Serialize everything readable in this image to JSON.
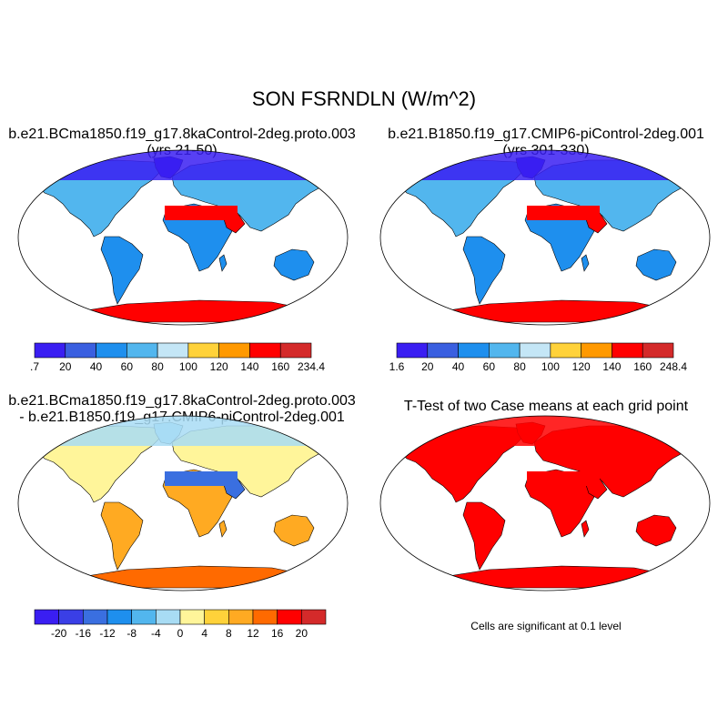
{
  "title": "SON FSRNDLN (W/m^2)",
  "panels": [
    {
      "title_line1": "b.e21.BCma1850.f19_g17.8kaControl-2deg.proto.003",
      "title_line2": "(yrs 21-50)",
      "colorbar": {
        "labels": [
          ".7",
          "20",
          "40",
          "60",
          "80",
          "100",
          "120",
          "140",
          "160",
          "234.4"
        ],
        "colors": [
          "#3a1ef2",
          "#3a5fe0",
          "#1e8fee",
          "#52b6ee",
          "#c4e6f6",
          "#ffd23a",
          "#ff9900",
          "#ff0000",
          "#d42a2a"
        ]
      },
      "map_fill": {
        "high_lat": "#3a1ef2",
        "mid": "#52b6ee",
        "tropics": "#1e8fee",
        "desert": "#ff0000",
        "antarctica": "#ff0000"
      }
    },
    {
      "title_line1": "b.e21.B1850.f19_g17.CMIP6-piControl-2deg.001",
      "title_line2": "(yrs 301-330)",
      "colorbar": {
        "labels": [
          "1.6",
          "20",
          "40",
          "60",
          "80",
          "100",
          "120",
          "140",
          "160",
          "248.4"
        ],
        "colors": [
          "#3a1ef2",
          "#3a5fe0",
          "#1e8fee",
          "#52b6ee",
          "#c4e6f6",
          "#ffd23a",
          "#ff9900",
          "#ff0000",
          "#d42a2a"
        ]
      },
      "map_fill": {
        "high_lat": "#3a1ef2",
        "mid": "#52b6ee",
        "tropics": "#1e8fee",
        "desert": "#ff0000",
        "antarctica": "#ff0000"
      }
    },
    {
      "title_line1": "b.e21.BCma1850.f19_g17.8kaControl-2deg.proto.003",
      "title_line2": "- b.e21.B1850.f19_g17.CMIP6-piControl-2deg.001",
      "colorbar": {
        "labels": [
          "-20",
          "-16",
          "-12",
          "-8",
          "-4",
          "0",
          "4",
          "8",
          "12",
          "16",
          "20"
        ],
        "colors": [
          "#3a1ef2",
          "#3a3fe6",
          "#3a6fe0",
          "#1e8fee",
          "#52b6ee",
          "#a8dcf4",
          "#fff59a",
          "#ffd23a",
          "#ffaa22",
          "#ff6a00",
          "#ff0000",
          "#d42a2a"
        ]
      },
      "map_fill": {
        "high_lat": "#a8dcf4",
        "mid": "#fff59a",
        "tropics": "#ffaa22",
        "desert": "#3a6fe0",
        "antarctica": "#ff6a00"
      }
    },
    {
      "title_line1": "T-Test of two Case means at each grid point",
      "note": "Cells are significant at 0.1 level",
      "map_fill": {
        "high_lat": "#ff0000",
        "mid": "#ff0000",
        "tropics": "#ff0000",
        "desert": "#ff0000",
        "antarctica": "#ff0000"
      }
    }
  ]
}
